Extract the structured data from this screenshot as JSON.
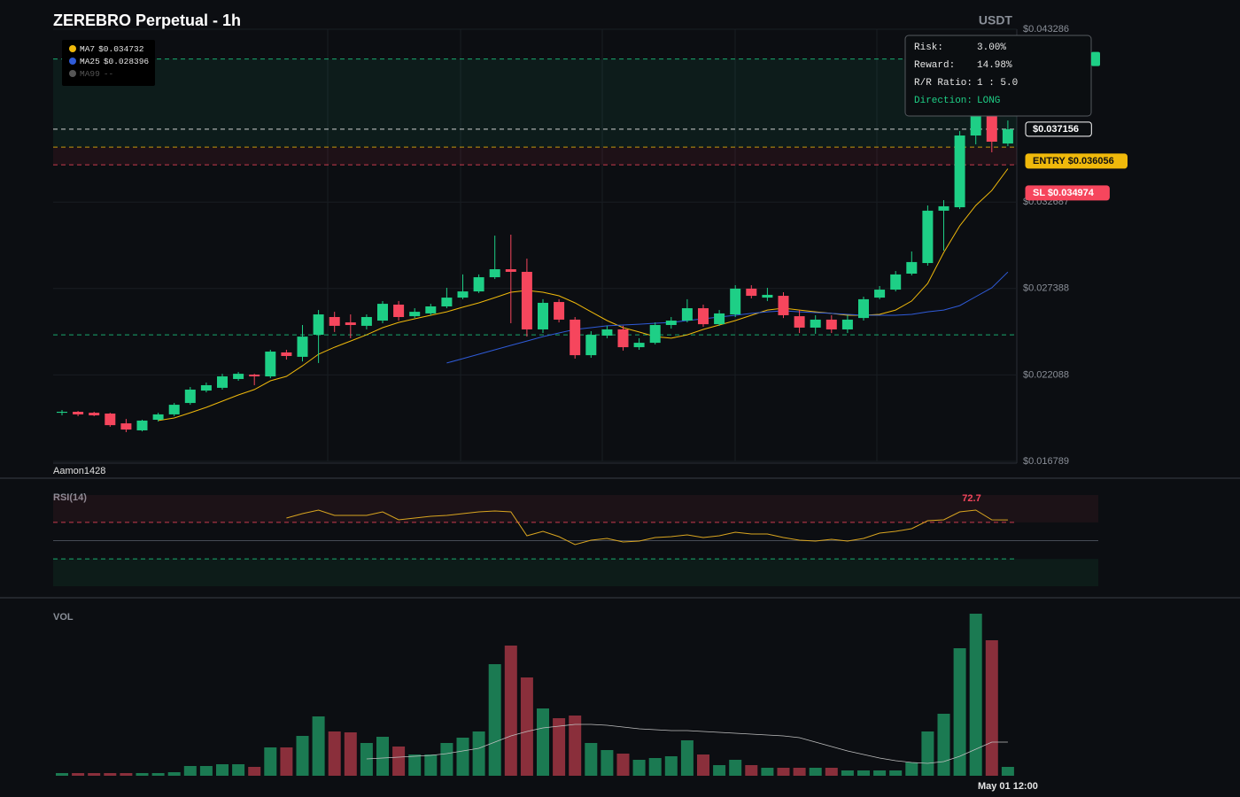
{
  "chart_data": [
    {
      "type": "candlestick",
      "title": "ZEREBRO Perpetual - 1h",
      "quote": "USDT",
      "watermark": "Aamon1428",
      "ylim": [
        0.016789,
        0.043286
      ],
      "yticks": [
        {
          "value": 0.016789,
          "label": "$0.016789"
        },
        {
          "value": 0.022088,
          "label": "$0.022088"
        },
        {
          "value": 0.027388,
          "label": "$0.027388"
        },
        {
          "value": 0.032687,
          "label": "$0.032687"
        },
        {
          "value": 0.043286,
          "label": "$0.043286"
        }
      ],
      "up_color": "#1ecf86",
      "down_color": "#f6465d",
      "open": [
        0.01977,
        0.01983,
        0.01977,
        0.01972,
        0.01912,
        0.01869,
        0.01934,
        0.01967,
        0.02037,
        0.02113,
        0.0213,
        0.02184,
        0.02211,
        0.022,
        0.02347,
        0.0232,
        0.02455,
        0.02564,
        0.02531,
        0.0251,
        0.02542,
        0.0264,
        0.02569,
        0.02586,
        0.02629,
        0.02683,
        0.02721,
        0.02808,
        0.02857,
        0.02841,
        0.02488,
        0.02656,
        0.02548,
        0.0233,
        0.0245,
        0.02488,
        0.02379,
        0.02406,
        0.02515,
        0.02542,
        0.02618,
        0.0252,
        0.0258,
        0.02738,
        0.02683,
        0.02694,
        0.02569,
        0.02499,
        0.02548,
        0.02488,
        0.02558,
        0.02683,
        0.02732,
        0.0283,
        0.02895,
        0.03216,
        0.03237,
        0.03677,
        0.03802,
        0.03628
      ],
      "high": [
        0.01994,
        0.01988,
        0.01983,
        0.01977,
        0.01939,
        0.01934,
        0.01977,
        0.02037,
        0.02135,
        0.02162,
        0.02216,
        0.02227,
        0.02216,
        0.02363,
        0.02363,
        0.02515,
        0.02607,
        0.02596,
        0.0258,
        0.0258,
        0.02662,
        0.02662,
        0.02618,
        0.02645,
        0.02743,
        0.02825,
        0.02825,
        0.03063,
        0.03069,
        0.02922,
        0.02673,
        0.02673,
        0.02564,
        0.02477,
        0.0251,
        0.0251,
        0.02434,
        0.02531,
        0.02564,
        0.02673,
        0.0264,
        0.02607,
        0.02759,
        0.02759,
        0.02743,
        0.02716,
        0.02607,
        0.02575,
        0.02575,
        0.02575,
        0.02689,
        0.02754,
        0.02846,
        0.02966,
        0.03248,
        0.03281,
        0.03704,
        0.03965,
        0.03965,
        0.03769
      ],
      "low": [
        0.01961,
        0.01956,
        0.01956,
        0.01891,
        0.01858,
        0.01863,
        0.01923,
        0.01956,
        0.02026,
        0.02102,
        0.02119,
        0.02173,
        0.02146,
        0.02189,
        0.02303,
        0.02292,
        0.02282,
        0.02472,
        0.02434,
        0.02488,
        0.02526,
        0.02542,
        0.02558,
        0.02575,
        0.02618,
        0.02673,
        0.02711,
        0.02797,
        0.02526,
        0.02444,
        0.02466,
        0.02531,
        0.02309,
        0.02314,
        0.02434,
        0.02358,
        0.02363,
        0.02396,
        0.02493,
        0.02531,
        0.02504,
        0.0251,
        0.02564,
        0.02678,
        0.02662,
        0.02558,
        0.02466,
        0.02461,
        0.02466,
        0.02466,
        0.02542,
        0.02673,
        0.02721,
        0.02819,
        0.02879,
        0.02971,
        0.03226,
        0.03623,
        0.03574,
        0.03612
      ],
      "close": [
        0.01983,
        0.01967,
        0.01961,
        0.01901,
        0.01874,
        0.01929,
        0.01967,
        0.02026,
        0.02119,
        0.02146,
        0.022,
        0.02216,
        0.022,
        0.02352,
        0.02325,
        0.02444,
        0.0258,
        0.0251,
        0.02515,
        0.02564,
        0.02645,
        0.02564,
        0.02596,
        0.02629,
        0.02683,
        0.02721,
        0.02808,
        0.02857,
        0.02841,
        0.02488,
        0.02651,
        0.02548,
        0.0233,
        0.02455,
        0.02488,
        0.02379,
        0.02406,
        0.02515,
        0.02542,
        0.02618,
        0.0252,
        0.02586,
        0.02738,
        0.02694,
        0.027,
        0.02575,
        0.02499,
        0.02548,
        0.02488,
        0.02548,
        0.02673,
        0.02732,
        0.02825,
        0.02901,
        0.03216,
        0.03243,
        0.03677,
        0.03802,
        0.03639,
        0.037156
      ],
      "series": [
        {
          "name": "MA7",
          "color": "#f0b90b",
          "legend_label": "$0.034732",
          "values": [
            null,
            null,
            null,
            null,
            null,
            null,
            0.01929,
            0.01945,
            0.01977,
            0.0201,
            0.02048,
            0.02086,
            0.02119,
            0.02173,
            0.022,
            0.02265,
            0.02336,
            0.02379,
            0.02417,
            0.02455,
            0.02499,
            0.02531,
            0.02553,
            0.02575,
            0.02596,
            0.02624,
            0.02651,
            0.02683,
            0.02716,
            0.02727,
            0.02716,
            0.02694,
            0.02651,
            0.02596,
            0.02542,
            0.02499,
            0.02472,
            0.02444,
            0.02434,
            0.02455,
            0.02488,
            0.02515,
            0.02542,
            0.02575,
            0.02607,
            0.02618,
            0.02607,
            0.02596,
            0.02586,
            0.02575,
            0.02575,
            0.0258,
            0.02607,
            0.02662,
            0.0277,
            0.0296,
            0.03123,
            0.03248,
            0.0334,
            0.034732
          ]
        },
        {
          "name": "MA25",
          "color": "#2f5bd8",
          "legend_label": "$0.028396",
          "values": [
            null,
            null,
            null,
            null,
            null,
            null,
            null,
            null,
            null,
            null,
            null,
            null,
            null,
            null,
            null,
            null,
            null,
            null,
            null,
            null,
            null,
            null,
            null,
            null,
            0.02282,
            0.02309,
            0.02336,
            0.02363,
            0.0239,
            0.02417,
            0.02444,
            0.02466,
            0.02488,
            0.02499,
            0.0251,
            0.02515,
            0.0252,
            0.02526,
            0.02531,
            0.02542,
            0.02553,
            0.02564,
            0.02575,
            0.02586,
            0.02596,
            0.02602,
            0.02596,
            0.02591,
            0.02586,
            0.0258,
            0.02575,
            0.02575,
            0.02575,
            0.0258,
            0.02596,
            0.02607,
            0.02634,
            0.02689,
            0.02743,
            0.028396
          ]
        },
        {
          "name": "MA99",
          "color": "#555555",
          "legend_label": "--"
        }
      ],
      "levels": [
        {
          "value": 0.041457,
          "color": "#1ecf86"
        },
        {
          "value": 0.037156,
          "label": "$0.037156",
          "color": "#ffffff",
          "text_color": "#ffffff"
        },
        {
          "value": 0.036056,
          "label": "ENTRY $0.036056",
          "color": "#f0b90b",
          "text_color": "#111111"
        },
        {
          "value": 0.034974,
          "label": "SL $0.034974",
          "color": "#f6465d",
          "text_color": "#ffffff"
        },
        {
          "value": 0.02455,
          "color": "#1ecf86"
        }
      ],
      "tooltip": [
        {
          "label": "Risk:",
          "value": "3.00%"
        },
        {
          "label": "Reward:",
          "value": "14.98%"
        },
        {
          "label": "R/R Ratio:",
          "value": "1 : 5.0"
        },
        {
          "label": "Direction:",
          "value": "LONG",
          "color": "#1ecf86"
        }
      ]
    },
    {
      "type": "line",
      "title": "RSI(14)",
      "ylim": [
        0,
        100
      ],
      "color": "#d9a520",
      "levels": [
        {
          "value": 70,
          "color": "#f6465d"
        },
        {
          "value": 50,
          "color": "#555b66"
        },
        {
          "value": 30,
          "color": "#1ecf86"
        }
      ],
      "values": [
        null,
        null,
        null,
        null,
        null,
        null,
        null,
        null,
        null,
        null,
        null,
        null,
        null,
        null,
        74.8,
        79.6,
        83.5,
        77.7,
        77.7,
        77.7,
        81.6,
        72.8,
        74.8,
        76.7,
        77.7,
        79.6,
        81.6,
        82.5,
        81.6,
        55.3,
        60.2,
        54.4,
        45.6,
        50.5,
        52.4,
        48.5,
        49.5,
        53.4,
        54.4,
        56.3,
        53.4,
        55.3,
        59.2,
        57.3,
        57.3,
        53.4,
        50.5,
        49.5,
        51.5,
        49.5,
        52.4,
        58.3,
        60.2,
        63.1,
        71.8,
        72.8,
        81.6,
        83.5,
        72.8,
        72.7
      ]
    },
    {
      "type": "bar",
      "title": "VOL",
      "ylim": [
        0,
        200
      ],
      "up_color": "#1b7a52",
      "down_color": "#8a2f3b",
      "values": [
        3,
        3,
        3,
        3,
        3,
        3,
        3,
        4,
        11,
        11,
        13,
        13,
        10,
        32,
        32,
        45,
        67,
        50,
        49,
        37,
        44,
        33,
        24,
        24,
        37,
        43,
        50,
        126,
        147,
        111,
        76,
        65,
        68,
        37,
        29,
        25,
        18,
        20,
        22,
        40,
        24,
        12,
        18,
        12,
        9,
        9,
        9,
        9,
        9,
        6,
        6,
        6,
        6,
        15,
        50,
        70,
        144,
        183,
        153,
        10
      ],
      "ma": {
        "color": "#bfbfbf",
        "values": [
          null,
          null,
          null,
          null,
          null,
          null,
          null,
          null,
          null,
          null,
          null,
          null,
          null,
          null,
          null,
          null,
          null,
          null,
          null,
          19,
          20,
          21,
          22,
          23,
          25,
          28,
          31,
          38,
          45,
          50,
          54,
          56,
          58,
          58,
          57,
          55,
          53,
          52,
          51,
          51,
          50,
          49,
          48,
          47,
          46,
          45,
          43,
          38,
          33,
          28,
          24,
          20,
          17,
          15,
          14,
          16,
          22,
          30,
          38,
          38
        ]
      },
      "categories": [
        null,
        null,
        null,
        null,
        null,
        null,
        null,
        null,
        null,
        null,
        null,
        null,
        null,
        null,
        null,
        null,
        null,
        null,
        null,
        null,
        null,
        null,
        null,
        null,
        null,
        null,
        null,
        null,
        null,
        null,
        null,
        null,
        null,
        null,
        null,
        null,
        null,
        null,
        null,
        null,
        null,
        null,
        null,
        null,
        null,
        null,
        null,
        null,
        null,
        null,
        null,
        null,
        null,
        null,
        null,
        null,
        null,
        null,
        null,
        "May 01 12:00"
      ]
    }
  ]
}
